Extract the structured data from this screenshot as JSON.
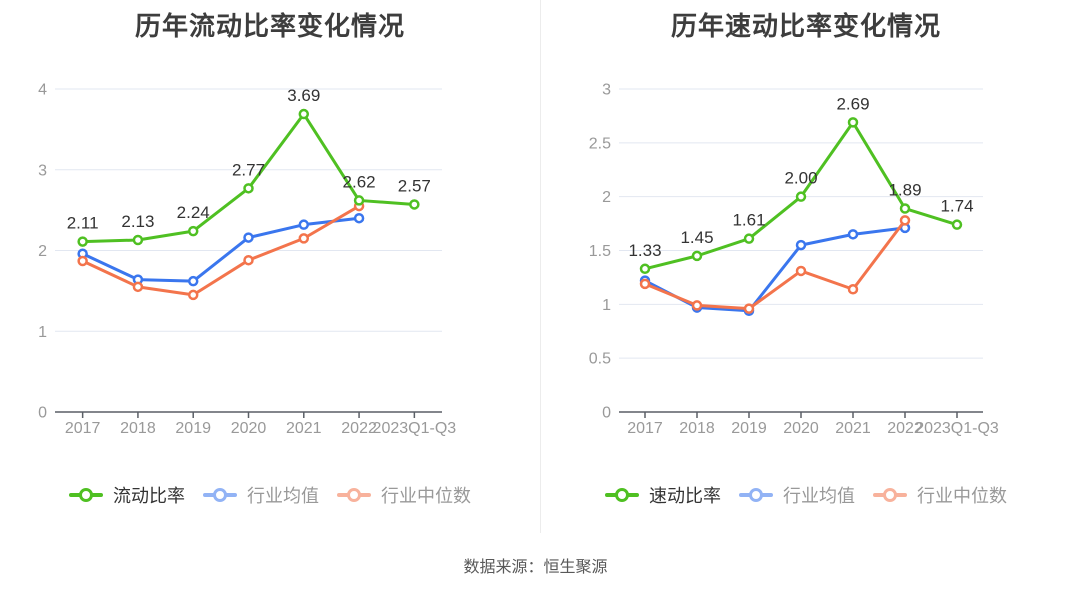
{
  "page": {
    "footer": "数据来源：恒生聚源"
  },
  "colors": {
    "series_green": "#4fc022",
    "series_blue": "#3a76ee",
    "series_orange": "#f3744c",
    "gridline": "#e2e7f1",
    "axis_line": "#5a5f66",
    "tick_label": "#999999",
    "value_label": "#333333",
    "title_text": "#3d3d3d",
    "legend_primary_text": "#333333",
    "legend_secondary_text": "#999999",
    "panel_divider": "#ececec"
  },
  "chart_data": [
    {
      "type": "line",
      "title": "历年流动比率变化情况",
      "categories": [
        "2017",
        "2018",
        "2019",
        "2020",
        "2021",
        "2022",
        "2023Q1-Q3"
      ],
      "ylim": [
        0,
        4
      ],
      "yticks": [
        "0",
        "1",
        "2",
        "3",
        "4"
      ],
      "grid": "horizontal",
      "legend_position": "bottom",
      "series": [
        {
          "name": "流动比率",
          "color": "#4fc022",
          "values": [
            2.11,
            2.13,
            2.24,
            2.77,
            3.69,
            2.62,
            2.57
          ],
          "point_labels": [
            "2.11",
            "2.13",
            "2.24",
            "2.77",
            "3.69",
            "2.62",
            "2.57"
          ]
        },
        {
          "name": "行业均值",
          "color": "#3a76ee",
          "values": [
            1.96,
            1.64,
            1.62,
            2.16,
            2.32,
            2.4
          ]
        },
        {
          "name": "行业中位数",
          "color": "#f3744c",
          "values": [
            1.87,
            1.55,
            1.45,
            1.88,
            2.15,
            2.55
          ]
        }
      ]
    },
    {
      "type": "line",
      "title": "历年速动比率变化情况",
      "categories": [
        "2017",
        "2018",
        "2019",
        "2020",
        "2021",
        "2022",
        "2023Q1-Q3"
      ],
      "ylim": [
        0,
        3
      ],
      "yticks": [
        "0",
        "0.5",
        "1",
        "1.5",
        "2",
        "2.5",
        "3"
      ],
      "grid": "horizontal",
      "legend_position": "bottom",
      "series": [
        {
          "name": "速动比率",
          "color": "#4fc022",
          "values": [
            1.33,
            1.45,
            1.61,
            2.0,
            2.69,
            1.89,
            1.74
          ],
          "point_labels": [
            "1.33",
            "1.45",
            "1.61",
            "2.00",
            "2.69",
            "1.89",
            "1.74"
          ]
        },
        {
          "name": "行业均值",
          "color": "#3a76ee",
          "values": [
            1.22,
            0.97,
            0.94,
            1.55,
            1.65,
            1.71
          ]
        },
        {
          "name": "行业中位数",
          "color": "#f3744c",
          "values": [
            1.19,
            0.99,
            0.96,
            1.31,
            1.14,
            1.78
          ]
        }
      ]
    }
  ]
}
